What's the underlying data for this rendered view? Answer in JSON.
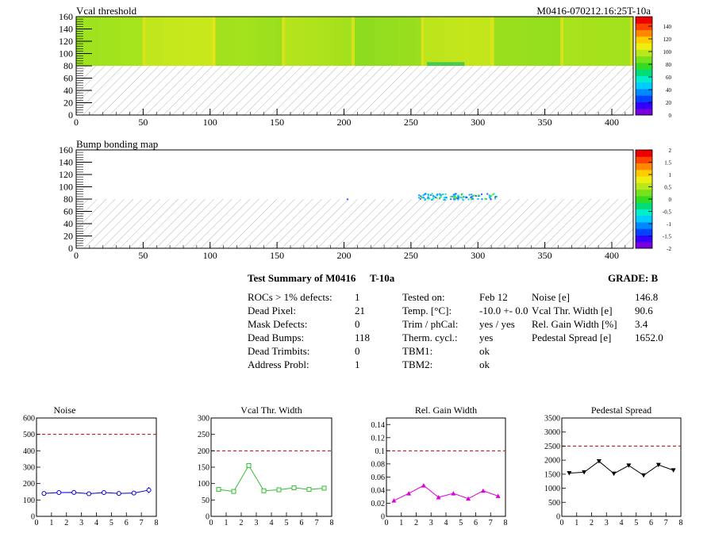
{
  "header": {
    "map1_title": "Vcal threshold",
    "module_tag": "M0416-070212.16:25T-10a",
    "map2_title": "Bump bonding map"
  },
  "maps": {
    "x_ticks": [
      "0",
      "50",
      "100",
      "150",
      "200",
      "250",
      "300",
      "350",
      "400"
    ],
    "y_ticks": [
      "0",
      "20",
      "40",
      "60",
      "80",
      "100",
      "120",
      "140",
      "160"
    ],
    "xlim": [
      0,
      416
    ],
    "ylim": [
      0,
      160
    ],
    "colors": {
      "green": "#7fdc1f",
      "yellow": "#e8ea1a",
      "hatch": "#b4b4b4"
    },
    "palette1_labels": [
      "0",
      "20",
      "40",
      "60",
      "80",
      "100",
      "120",
      "140"
    ],
    "palette2_labels": [
      "-2",
      "-1.5",
      "-1",
      "-0.5",
      "0",
      "0.5",
      "1",
      "1.5",
      "2"
    ]
  },
  "summary": {
    "title": "Test Summary of M0416",
    "temp_tag": "T-10a",
    "grade": "GRADE:  B",
    "col1": [
      {
        "label": "ROCs > 1% defects:",
        "value": "1"
      },
      {
        "label": "Dead Pixel:",
        "value": "21"
      },
      {
        "label": "Mask Defects:",
        "value": "0"
      },
      {
        "label": "Dead Bumps:",
        "value": "118"
      },
      {
        "label": "Dead Trimbits:",
        "value": "0"
      },
      {
        "label": "Address Probl:",
        "value": "1"
      }
    ],
    "col2": [
      {
        "label": "Tested on:",
        "value": "Feb 12"
      },
      {
        "label": "Temp. [°C]:",
        "value": "-10.0 +- 0.0"
      },
      {
        "label": "Trim / phCal:",
        "value": "yes / yes"
      },
      {
        "label": "Therm. cycl.:",
        "value": "yes"
      },
      {
        "label": "TBM1:",
        "value": "ok"
      },
      {
        "label": "TBM2:",
        "value": "ok"
      }
    ],
    "col3": [
      {
        "label": "Noise [e]",
        "value": "146.8"
      },
      {
        "label": "Vcal Thr. Width [e]",
        "value": "90.6"
      },
      {
        "label": "Rel. Gain Width [%]",
        "value": "3.4"
      },
      {
        "label": "Pedestal Spread [e]",
        "value": "1652.0"
      }
    ]
  },
  "chart_data": [
    {
      "type": "line",
      "title": "Noise",
      "color": "#0000cc",
      "marker": "circle-open",
      "x": [
        0.5,
        1.5,
        2.5,
        3.5,
        4.5,
        5.5,
        6.5,
        7.5
      ],
      "values": [
        140,
        145,
        146,
        138,
        145,
        140,
        142,
        160
      ],
      "errors": [
        12,
        12,
        14,
        12,
        10,
        10,
        10,
        18
      ],
      "ylim": [
        0,
        600
      ],
      "xlim": [
        0,
        8
      ],
      "yticks": [
        "0",
        "100",
        "200",
        "300",
        "400",
        "500",
        "600"
      ],
      "xticks": [
        "0",
        "1",
        "2",
        "3",
        "4",
        "5",
        "6",
        "7",
        "8"
      ],
      "limit": 500
    },
    {
      "type": "line",
      "title": "Vcal Thr. Width",
      "color": "#33bb33",
      "marker": "square-open",
      "x": [
        0.5,
        1.5,
        2.5,
        3.5,
        4.5,
        5.5,
        6.5,
        7.5
      ],
      "values": [
        82,
        76,
        155,
        78,
        81,
        87,
        82,
        86
      ],
      "ylim": [
        0,
        300
      ],
      "xlim": [
        0,
        8
      ],
      "yticks": [
        "0",
        "50",
        "100",
        "150",
        "200",
        "250",
        "300"
      ],
      "xticks": [
        "0",
        "1",
        "2",
        "3",
        "4",
        "5",
        "6",
        "7",
        "8"
      ],
      "limit": 200
    },
    {
      "type": "line",
      "title": "Rel. Gain Width",
      "color": "#dd00dd",
      "marker": "triangle",
      "x": [
        0.5,
        1.5,
        2.5,
        3.5,
        4.5,
        5.5,
        6.5,
        7.5
      ],
      "values": [
        0.024,
        0.035,
        0.047,
        0.029,
        0.035,
        0.027,
        0.039,
        0.031
      ],
      "ylim": [
        0,
        0.15
      ],
      "xlim": [
        0,
        8
      ],
      "yticks": [
        "0",
        "0.02",
        "0.04",
        "0.06",
        "0.08",
        "0.1",
        "0.12",
        "0.14"
      ],
      "ytick_values": [
        0,
        0.02,
        0.04,
        0.06,
        0.08,
        0.1,
        0.12,
        0.14
      ],
      "xticks": [
        "0",
        "1",
        "2",
        "3",
        "4",
        "5",
        "6",
        "7",
        "8"
      ],
      "limit": 0.1
    },
    {
      "type": "line",
      "title": "Pedestal Spread",
      "color": "#000000",
      "marker": "triangle-down",
      "x": [
        0.5,
        1.5,
        2.5,
        3.5,
        4.5,
        5.5,
        6.5,
        7.5
      ],
      "values": [
        1540,
        1570,
        1960,
        1520,
        1810,
        1460,
        1830,
        1640
      ],
      "ylim": [
        0,
        3500
      ],
      "xlim": [
        0,
        8
      ],
      "yticks": [
        "0",
        "500",
        "1000",
        "1500",
        "2000",
        "2500",
        "3000",
        "3500"
      ],
      "xticks": [
        "0",
        "1",
        "2",
        "3",
        "4",
        "5",
        "6",
        "7",
        "8"
      ],
      "limit": 2500
    }
  ]
}
